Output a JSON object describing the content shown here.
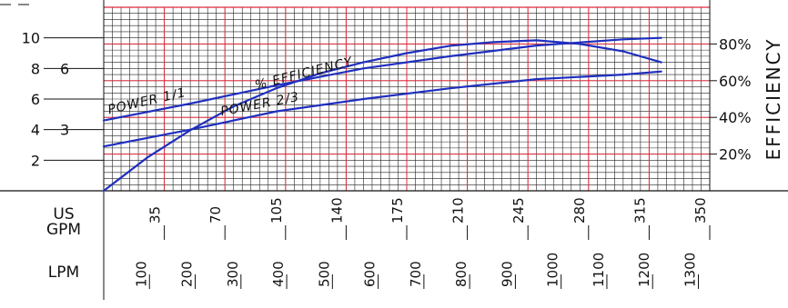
{
  "colors": {
    "curve": "#1f2fbf",
    "major_grid": "#e0283a",
    "minor_grid": "#222222",
    "ink": "#111111"
  },
  "chart_data": {
    "type": "line",
    "x_axis": {
      "units_label": [
        "US",
        "GPM"
      ],
      "range": [
        0,
        350
      ],
      "ticks": [
        35,
        70,
        105,
        140,
        175,
        210,
        245,
        280,
        315,
        350
      ],
      "secondary": {
        "label": "LPM",
        "ticks": [
          100,
          200,
          300,
          400,
          500,
          600,
          700,
          800,
          900,
          1000,
          1100,
          1200,
          1300
        ]
      }
    },
    "y_axis_left": {
      "range": [
        0,
        12
      ],
      "ticks": [
        2,
        4,
        6,
        8,
        10
      ],
      "power_ticks": [
        {
          "label": "6",
          "value": 8
        },
        {
          "label": "3",
          "value": 4
        }
      ]
    },
    "y_axis_right": {
      "label": "EFFICIENCY",
      "range": [
        0,
        100
      ],
      "ticks": [
        {
          "label": "20%",
          "value": 20
        },
        {
          "label": "40%",
          "value": 40
        },
        {
          "label": "60%",
          "value": 60
        },
        {
          "label": "80%",
          "value": 80
        }
      ]
    },
    "series": [
      {
        "name": "POWER  1/1",
        "axis": "left",
        "x": [
          0,
          50,
          100,
          150,
          200,
          250,
          300,
          322
        ],
        "y": [
          4.6,
          5.7,
          6.9,
          8.0,
          8.8,
          9.5,
          9.9,
          10.0
        ]
      },
      {
        "name": "POWER  2/3",
        "axis": "left",
        "x": [
          0,
          50,
          100,
          150,
          200,
          250,
          300,
          322
        ],
        "y": [
          2.9,
          4.0,
          5.2,
          6.0,
          6.7,
          7.3,
          7.6,
          7.8
        ]
      },
      {
        "name": "% EFFICIENCY",
        "axis": "right",
        "x": [
          0,
          25,
          50,
          75,
          100,
          125,
          150,
          175,
          200,
          225,
          250,
          275,
          300,
          322
        ],
        "y": [
          0,
          18,
          33,
          46,
          56,
          64,
          70,
          75,
          79,
          81,
          82,
          80,
          76,
          70
        ]
      }
    ]
  }
}
